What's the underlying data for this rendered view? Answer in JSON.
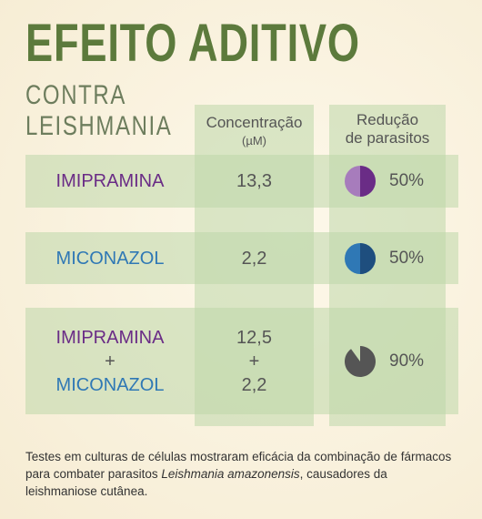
{
  "header": {
    "title": "EFEITO ADITIVO",
    "subtitle_lines": [
      "CONTRA",
      "LEISHMANIA"
    ]
  },
  "table": {
    "columns": [
      {
        "title_lines": [
          "Concentração",
          "(µM)"
        ]
      },
      {
        "title_lines": [
          "Redução",
          "de parasitos"
        ]
      }
    ],
    "rows": [
      {
        "drug_lines": [
          {
            "text": "IMIPRAMINA",
            "color": "#6a2c86"
          }
        ],
        "concentration_lines": [
          "13,3"
        ],
        "reduction": {
          "value": 50,
          "label": "50%"
        },
        "pie_color": "#6a2c86",
        "pie_rest_color": "#a77cbc"
      },
      {
        "drug_lines": [
          {
            "text": "MICONAZOL",
            "color": "#2f78b5"
          }
        ],
        "concentration_lines": [
          "2,2"
        ],
        "reduction": {
          "value": 50,
          "label": "50%"
        },
        "pie_color": "#1e4e7e",
        "pie_rest_color": "#2f78b5"
      },
      {
        "drug_lines": [
          {
            "text": "IMIPRAMINA",
            "color": "#6a2c86"
          },
          {
            "text": "+",
            "color": "#555555"
          },
          {
            "text": "MICONAZOL",
            "color": "#2f78b5"
          }
        ],
        "concentration_lines": [
          "12,5",
          "+",
          "2,2"
        ],
        "reduction": {
          "value": 90,
          "label": "90%"
        },
        "pie_color": "#555555"
      }
    ]
  },
  "footer": {
    "parts": [
      "Testes em culturas de células mostraram eficácia da combinação de fármacos para combater parasitos ",
      "Leishmania amazonensis",
      ", causadores da leishmaniose cutânea."
    ]
  }
}
